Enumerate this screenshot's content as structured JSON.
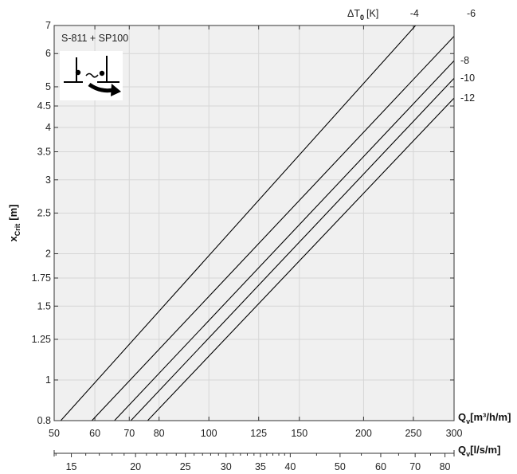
{
  "chart_data": {
    "type": "line",
    "title": "S-811 + SP100",
    "x_scale": "log",
    "y_scale": "log",
    "grid": true,
    "xlabel_main": "Q",
    "xlabel_main_sub": "v",
    "xlabel_main_unit": "[m³/h/m]",
    "xlabel_second": "Q",
    "xlabel_second_sub": "v",
    "xlabel_second_unit": "[l/s/m]",
    "ylabel": "x",
    "ylabel_sub": "Crit",
    "ylabel_unit": "[m]",
    "xlim": [
      50,
      300
    ],
    "ylim": [
      0.8,
      7
    ],
    "x_ticks": [
      50,
      60,
      70,
      80,
      100,
      125,
      150,
      200,
      250,
      300
    ],
    "x_tick_labels": [
      "50",
      "60",
      "70",
      "80",
      "100",
      "125",
      "150",
      "200",
      "250",
      "300"
    ],
    "x2_ticks": [
      15,
      20,
      25,
      30,
      35,
      40,
      50,
      60,
      70,
      80
    ],
    "x2_tick_labels": [
      "15",
      "20",
      "25",
      "30",
      "35",
      "40",
      "50",
      "60",
      "70",
      "80"
    ],
    "y_ticks": [
      0.8,
      1,
      1.25,
      1.5,
      1.75,
      2,
      2.5,
      3,
      3.5,
      4,
      4.5,
      5,
      6,
      7
    ],
    "y_tick_labels": [
      "0.8",
      "1",
      "1.25",
      "1.5",
      "1.75",
      "2",
      "2.5",
      "3",
      "3.5",
      "4",
      "4.5",
      "5",
      "6",
      "7"
    ],
    "legend_title": "ΔT",
    "legend_title_sub": "0",
    "legend_title_unit": "[K]",
    "series": [
      {
        "name": "-4",
        "x": [
          51.5,
          252.5
        ],
        "y": [
          0.8,
          7
        ]
      },
      {
        "name": "-6",
        "x": [
          59.2,
          300
        ],
        "y": [
          0.8,
          6.6
        ]
      },
      {
        "name": "-8",
        "x": [
          65.5,
          300
        ],
        "y": [
          0.8,
          5.77
        ]
      },
      {
        "name": "-10",
        "x": [
          70.5,
          300
        ],
        "y": [
          0.8,
          5.24
        ]
      },
      {
        "name": "-12",
        "x": [
          76.0,
          300
        ],
        "y": [
          0.8,
          4.7
        ]
      }
    ]
  }
}
